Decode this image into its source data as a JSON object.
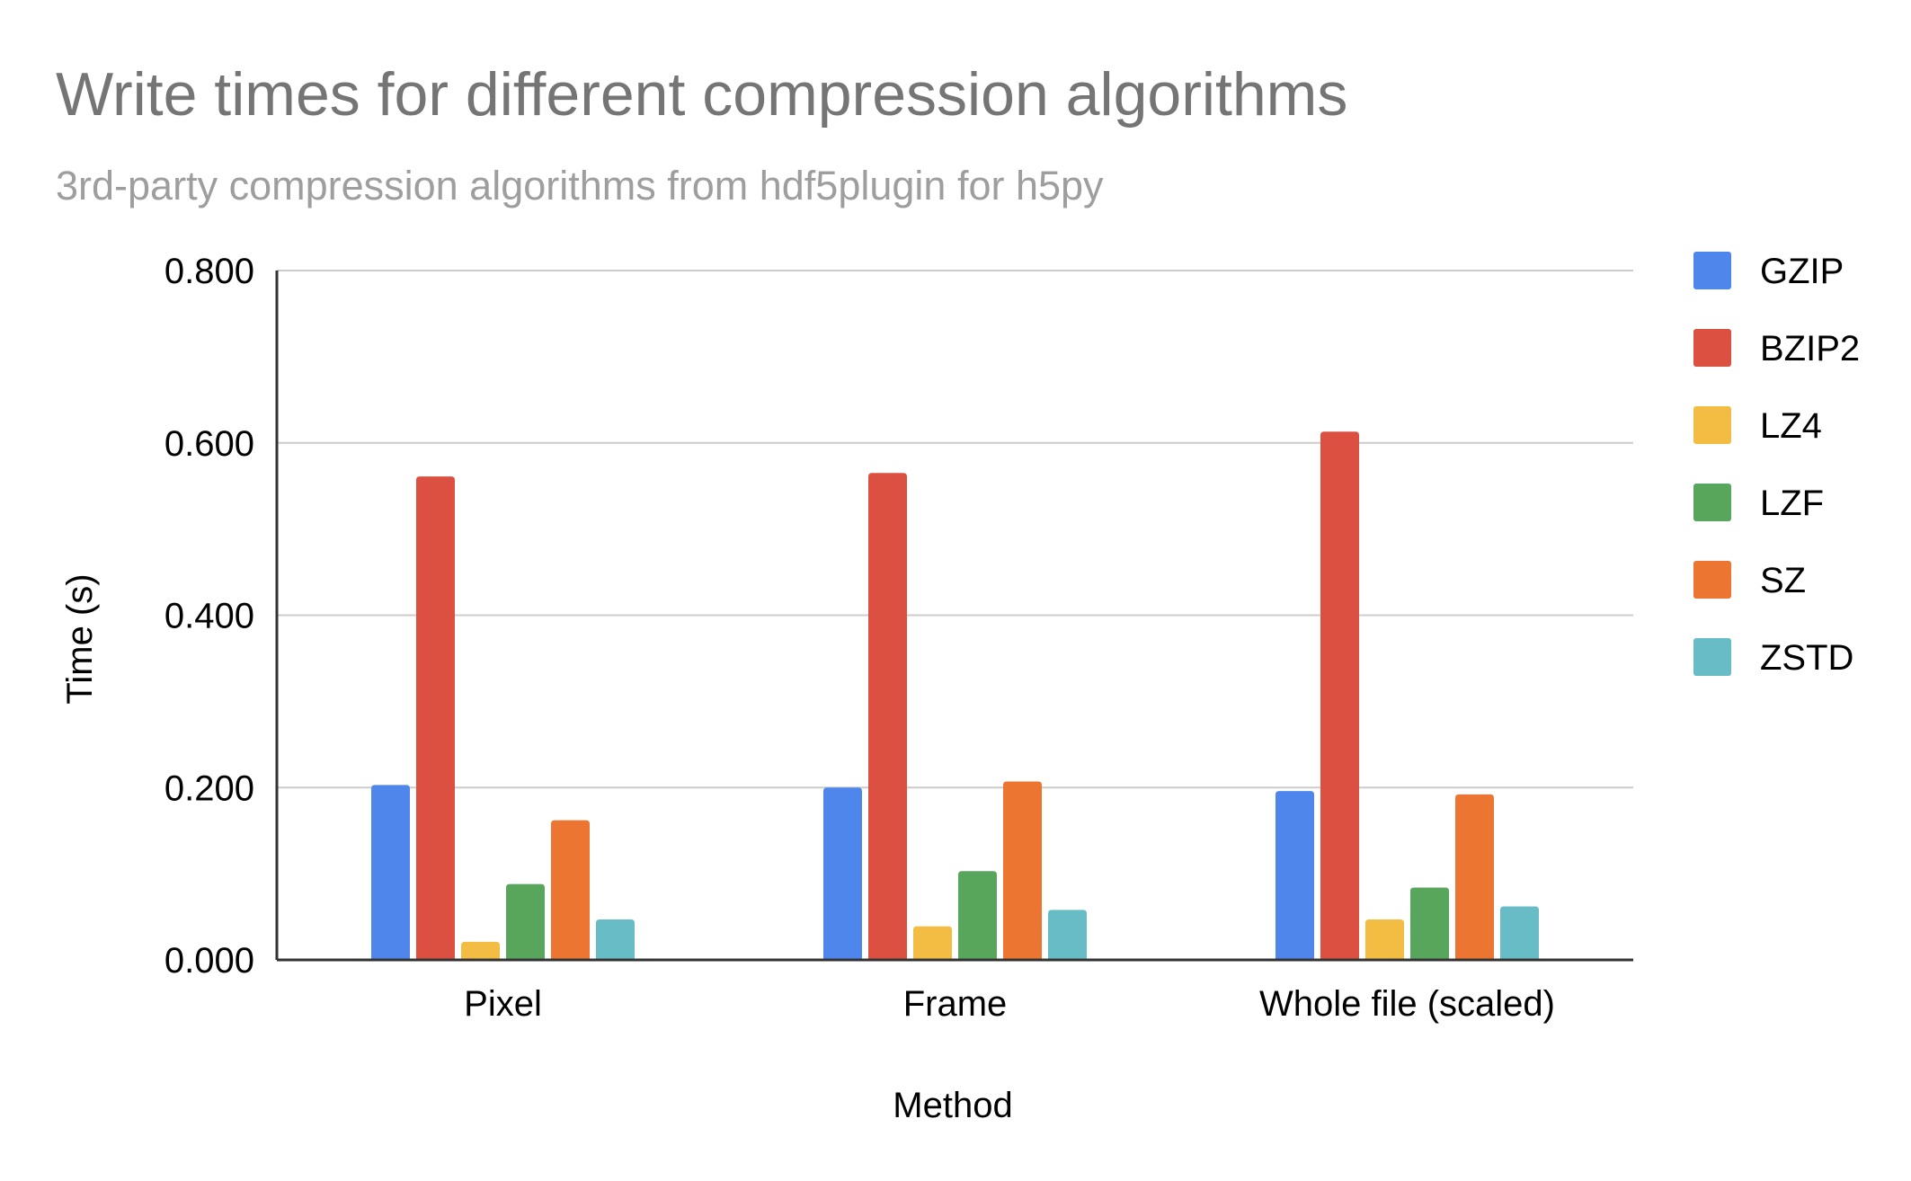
{
  "chart_data": {
    "type": "bar",
    "title": "Write times for different compression algorithms",
    "subtitle": "3rd-party compression algorithms from hdf5plugin for h5py",
    "xlabel": "Method",
    "ylabel": "Time (s)",
    "categories": [
      "Pixel",
      "Frame",
      "Whole file (scaled)"
    ],
    "ylim": [
      0,
      0.8
    ],
    "yticks": [
      "0.000",
      "0.200",
      "0.400",
      "0.600",
      "0.800"
    ],
    "grid": true,
    "legend_position": "right",
    "series": [
      {
        "name": "GZIP",
        "color": "#4f86ec",
        "values": [
          0.203,
          0.2,
          0.196
        ]
      },
      {
        "name": "BZIP2",
        "color": "#db5040",
        "values": [
          0.561,
          0.565,
          0.613
        ]
      },
      {
        "name": "LZ4",
        "color": "#f2bd42",
        "values": [
          0.021,
          0.039,
          0.047
        ]
      },
      {
        "name": "LZF",
        "color": "#58a65c",
        "values": [
          0.088,
          0.103,
          0.084
        ]
      },
      {
        "name": "SZ",
        "color": "#ed7532",
        "values": [
          0.162,
          0.207,
          0.192
        ]
      },
      {
        "name": "ZSTD",
        "color": "#68bcc6",
        "values": [
          0.047,
          0.058,
          0.062
        ]
      }
    ]
  }
}
